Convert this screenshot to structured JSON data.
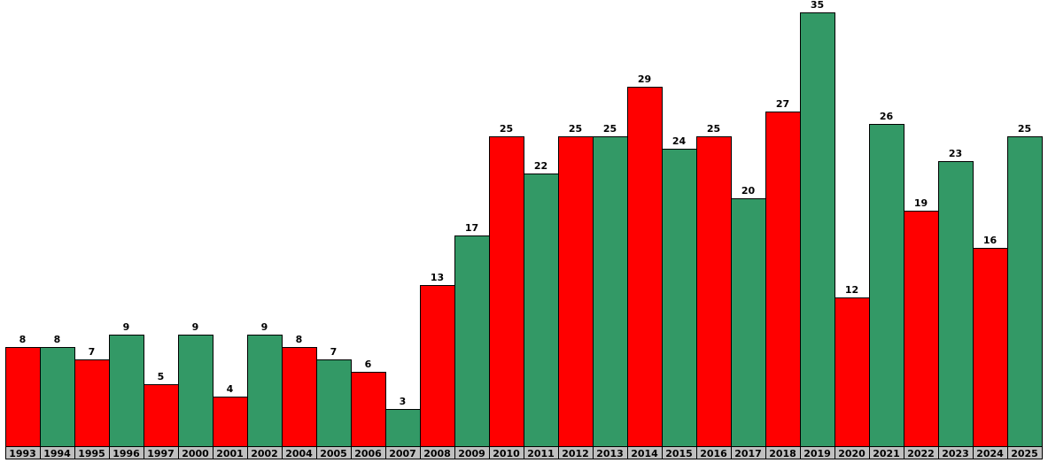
{
  "chart_data": {
    "type": "bar",
    "categories": [
      "1993",
      "1994",
      "1995",
      "1996",
      "1997",
      "2000",
      "2001",
      "2002",
      "2004",
      "2005",
      "2006",
      "2007",
      "2008",
      "2009",
      "2010",
      "2011",
      "2012",
      "2013",
      "2014",
      "2015",
      "2016",
      "2017",
      "2018",
      "2019",
      "2020",
      "2021",
      "2022",
      "2023",
      "2024",
      "2025"
    ],
    "values": [
      8,
      8,
      7,
      9,
      5,
      9,
      4,
      9,
      8,
      7,
      6,
      3,
      13,
      17,
      25,
      22,
      25,
      25,
      29,
      24,
      25,
      20,
      27,
      35,
      12,
      26,
      19,
      23,
      16,
      25
    ],
    "colors": [
      "#ff0000",
      "#339966",
      "#ff0000",
      "#339966",
      "#ff0000",
      "#339966",
      "#ff0000",
      "#339966",
      "#ff0000",
      "#339966",
      "#ff0000",
      "#339966",
      "#ff0000",
      "#339966",
      "#ff0000",
      "#339966",
      "#ff0000",
      "#339966",
      "#ff0000",
      "#339966",
      "#ff0000",
      "#339966",
      "#ff0000",
      "#339966",
      "#ff0000",
      "#339966",
      "#ff0000",
      "#339966",
      "#ff0000",
      "#339966"
    ]
  }
}
